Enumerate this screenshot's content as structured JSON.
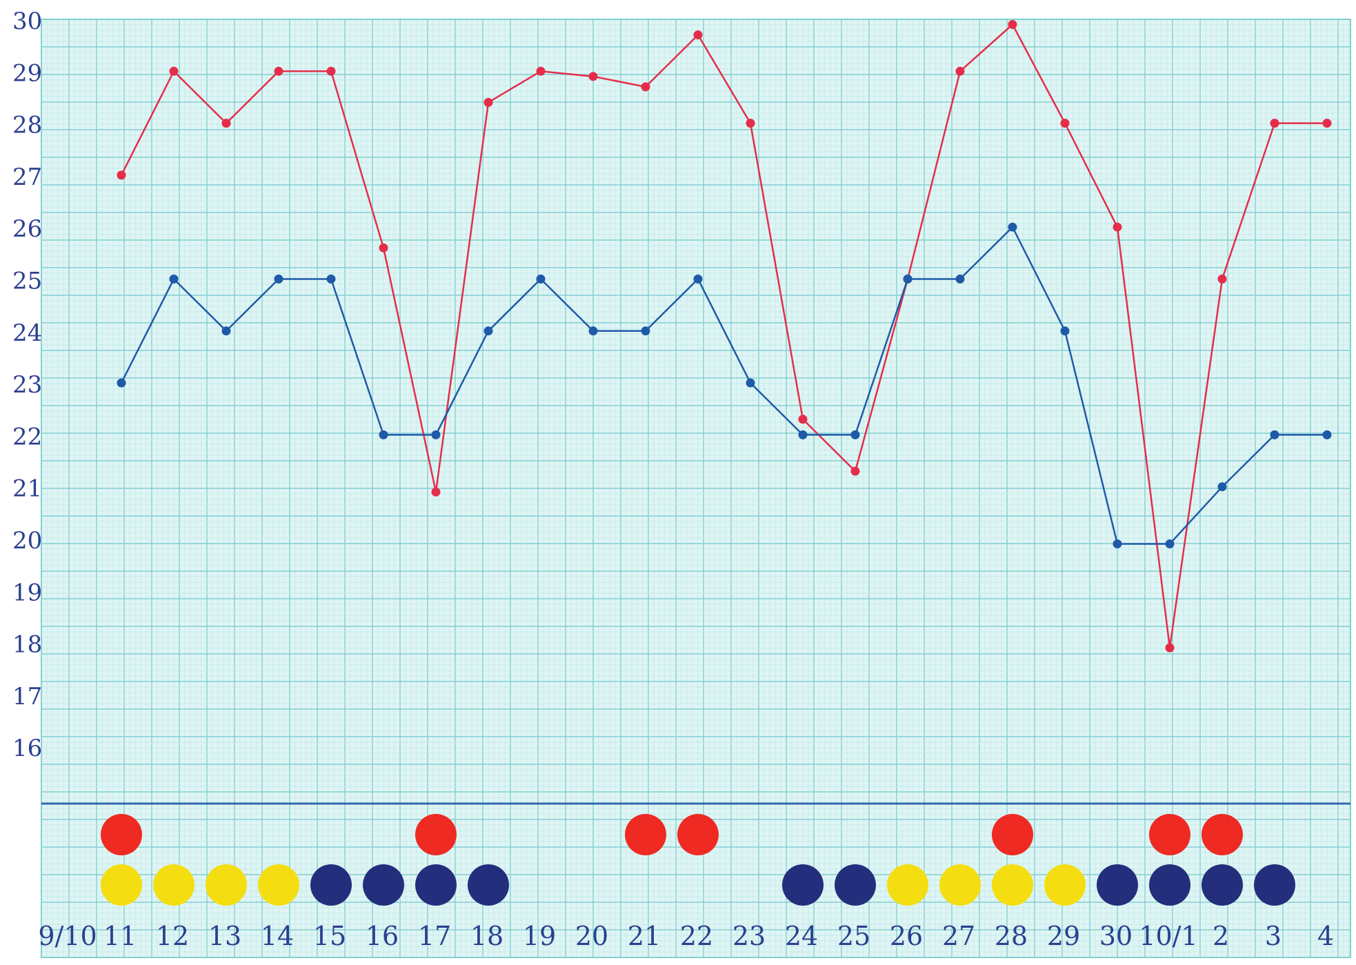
{
  "chart_data": {
    "type": "line",
    "title": "",
    "xlabel": "",
    "ylabel": "",
    "y_axis": {
      "ticks": [
        "30",
        "29",
        "28",
        "27",
        "26",
        "25",
        "24",
        "23",
        "22",
        "21",
        "20",
        "19",
        "18",
        "17",
        "16"
      ],
      "range": [
        15,
        30
      ]
    },
    "x_categories": [
      "9/10",
      "11",
      "12",
      "13",
      "14",
      "15",
      "16",
      "17",
      "18",
      "19",
      "20",
      "21",
      "22",
      "23",
      "24",
      "25",
      "26",
      "27",
      "28",
      "29",
      "30",
      "10/1",
      "2",
      "3",
      "4"
    ],
    "series": [
      {
        "color": "#e52d4a",
        "values": [
          27.0,
          29.0,
          28.0,
          29.0,
          29.0,
          25.6,
          20.9,
          28.4,
          29.0,
          28.9,
          28.7,
          29.7,
          28.0,
          22.3,
          21.3,
          25.0,
          29.0,
          29.9,
          28.0,
          26.0,
          17.9,
          25.0,
          28.0,
          28.0
        ]
      },
      {
        "color": "#1f5aa8",
        "values": [
          23.0,
          25.0,
          24.0,
          25.0,
          25.0,
          22.0,
          22.0,
          24.0,
          25.0,
          24.0,
          24.0,
          25.0,
          23.0,
          22.0,
          22.0,
          25.0,
          25.0,
          26.0,
          24.0,
          19.9,
          19.9,
          21.0,
          22.0,
          22.0
        ]
      }
    ],
    "weather_rows": [
      [
        "red",
        "yellow"
      ],
      [
        "yellow"
      ],
      [
        "yellow"
      ],
      [
        "yellow"
      ],
      [
        "navy"
      ],
      [
        "navy"
      ],
      [
        "red",
        "navy"
      ],
      [
        "navy"
      ],
      [],
      [],
      [
        "red"
      ],
      [
        "red"
      ],
      [],
      [
        "navy"
      ],
      [
        "navy"
      ],
      [
        "yellow"
      ],
      [
        "yellow"
      ],
      [
        "red",
        "yellow"
      ],
      [
        "yellow"
      ],
      [
        "navy"
      ],
      [
        "red",
        "navy"
      ],
      [
        "red",
        "navy"
      ],
      [
        "navy"
      ],
      []
    ],
    "colors": {
      "background": "#dff5f4",
      "grid_fine": "#bde6e7",
      "grid_major": "#83cfd1",
      "red_series": "#e52d4a",
      "blue_series": "#1f5aa8",
      "red_dot": "#ef2a22",
      "yellow_dot": "#f4de12",
      "navy_dot": "#232f7c",
      "handwriting": "#2b3f8f"
    }
  }
}
